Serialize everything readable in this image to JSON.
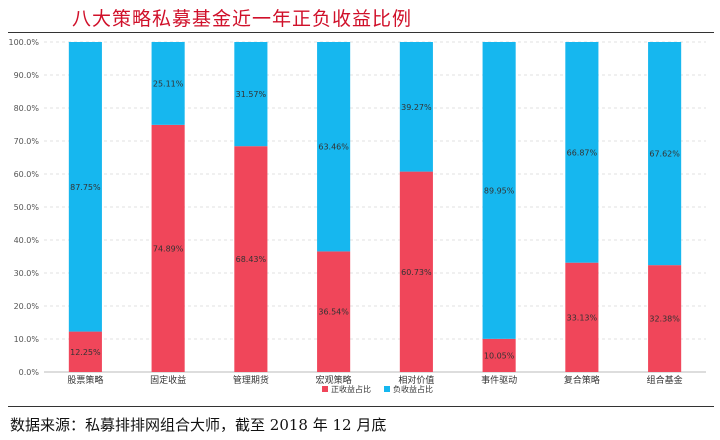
{
  "header": {
    "title": "八大策略私募基金近一年正负收益比例"
  },
  "footer": {
    "source": "数据来源：私募排排网组合大师，截至 2018 年 12 月底"
  },
  "chart_data": {
    "type": "bar",
    "stacked": true,
    "title": "八大策略私募基金近一年正负收益比例",
    "ylim": [
      0,
      100
    ],
    "yticks": [
      "0.0%",
      "10.0%",
      "20.0%",
      "30.0%",
      "40.0%",
      "50.0%",
      "60.0%",
      "70.0%",
      "80.0%",
      "90.0%",
      "100.0%"
    ],
    "grid": true,
    "legend_position": "bottom",
    "categories": [
      "股票策略",
      "固定收益",
      "管理期货",
      "宏观策略",
      "相对价值",
      "事件驱动",
      "复合策略",
      "组合基金"
    ],
    "series": [
      {
        "name": "正收益占比",
        "color": "#f0465a",
        "values": [
          12.25,
          74.89,
          68.43,
          36.54,
          60.73,
          10.05,
          33.13,
          32.38
        ],
        "labels": [
          "12.25%",
          "74.89%",
          "68.43%",
          "36.54%",
          "60.73%",
          "10.05%",
          "33.13%",
          "32.38%"
        ]
      },
      {
        "name": "负收益占比",
        "color": "#16b7ef",
        "values": [
          87.75,
          25.11,
          31.57,
          63.46,
          39.27,
          89.95,
          66.87,
          67.62
        ],
        "labels": [
          "87.75%",
          "25.11%",
          "31.57%",
          "63.46%",
          "39.27%",
          "89.95%",
          "66.87%",
          "67.62%"
        ]
      }
    ]
  }
}
